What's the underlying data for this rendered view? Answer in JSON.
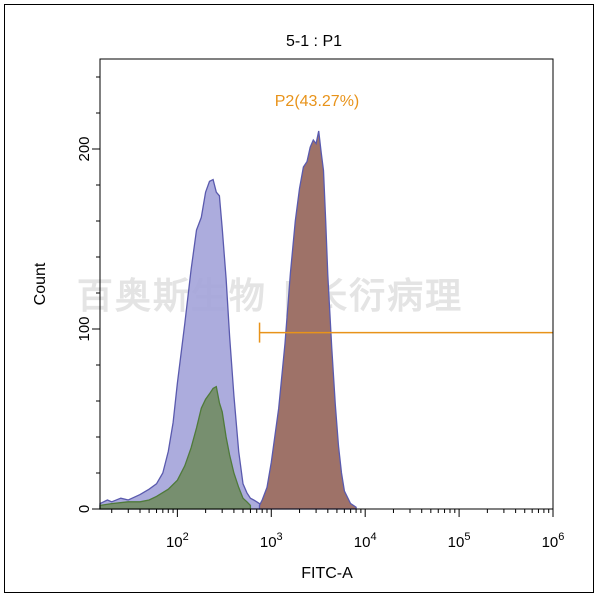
{
  "watermark_text": "百奥斯生物 | 长衍病理",
  "colors": {
    "blue_fill": "#a3a3d9",
    "blue_stroke": "#5a5aae",
    "green_fill": "#6d8a5c",
    "green_stroke": "#4f7a3a",
    "brown_fill": "#9e7268",
    "brown_stroke": "#5a5aae",
    "gate": "#e8931a"
  },
  "chart_data": {
    "type": "area",
    "title": "5-1 : P1",
    "xlabel": "FITC-A",
    "ylabel": "Count",
    "x_scale": "log",
    "xlim": [
      15,
      1000000
    ],
    "ylim": [
      0,
      250
    ],
    "x_ticks": [
      {
        "value": 100,
        "base": "10",
        "exp": "2"
      },
      {
        "value": 1000,
        "base": "10",
        "exp": "3"
      },
      {
        "value": 10000,
        "base": "10",
        "exp": "4"
      },
      {
        "value": 100000,
        "base": "10",
        "exp": "5"
      },
      {
        "value": 1000000,
        "base": "10",
        "exp": "6"
      }
    ],
    "y_ticks": [
      0,
      100,
      200
    ],
    "grid": false,
    "gate": {
      "label": "P2(43.27%)",
      "x_start": 750,
      "x_end": 1000000,
      "y": 98
    },
    "series": [
      {
        "color_key": "blue",
        "x": [
          15,
          18,
          20,
          25,
          30,
          40,
          50,
          60,
          70,
          80,
          90,
          100,
          120,
          140,
          160,
          180,
          200,
          220,
          240,
          260,
          280,
          300,
          330,
          360,
          400,
          450,
          500,
          550,
          600,
          650,
          700,
          800
        ],
        "y": [
          3,
          5,
          4,
          6,
          5,
          8,
          11,
          14,
          20,
          32,
          48,
          70,
          103,
          133,
          155,
          162,
          176,
          182,
          183,
          176,
          174,
          156,
          128,
          96,
          63,
          32,
          14,
          9,
          6,
          5,
          4,
          2
        ]
      },
      {
        "color_key": "green",
        "x": [
          15,
          20,
          30,
          40,
          50,
          60,
          80,
          100,
          120,
          140,
          160,
          180,
          200,
          220,
          240,
          260,
          280,
          300,
          330,
          360,
          400,
          450,
          500,
          550,
          600
        ],
        "y": [
          2,
          3,
          4,
          4,
          5,
          7,
          11,
          16,
          24,
          34,
          45,
          56,
          61,
          64,
          67,
          68,
          59,
          54,
          40,
          30,
          20,
          12,
          6,
          4,
          2
        ]
      },
      {
        "color_key": "brown",
        "x": [
          750,
          800,
          900,
          1000,
          1200,
          1400,
          1600,
          1800,
          2000,
          2200,
          2400,
          2600,
          2800,
          3000,
          3200,
          3400,
          3600,
          3800,
          4000,
          4400,
          4800,
          5200,
          5600,
          6000,
          7000,
          8000
        ],
        "y": [
          2,
          5,
          12,
          26,
          56,
          92,
          131,
          160,
          178,
          190,
          193,
          201,
          205,
          203,
          210,
          198,
          188,
          160,
          130,
          90,
          58,
          35,
          20,
          10,
          3,
          1
        ]
      }
    ]
  }
}
